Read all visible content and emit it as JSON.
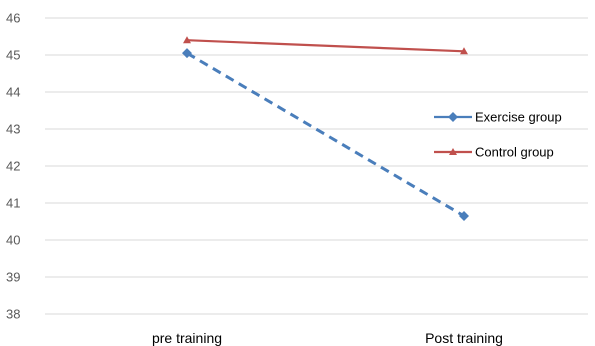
{
  "chart_data": {
    "type": "line",
    "categories": [
      "pre training",
      "Post training"
    ],
    "y_ticks": [
      "38",
      "39",
      "40",
      "41",
      "42",
      "43",
      "44",
      "45",
      "46"
    ],
    "ylim": [
      38,
      46
    ],
    "grid": true,
    "legend_position": "right",
    "series": [
      {
        "name": "Exercise group",
        "values": [
          45.05,
          40.65
        ],
        "color": "#4a7ebb",
        "dash": "dashed",
        "marker": "diamond"
      },
      {
        "name": "Control group",
        "values": [
          45.4,
          45.1
        ],
        "color": "#c0504d",
        "dash": "solid",
        "marker": "triangle"
      }
    ]
  }
}
